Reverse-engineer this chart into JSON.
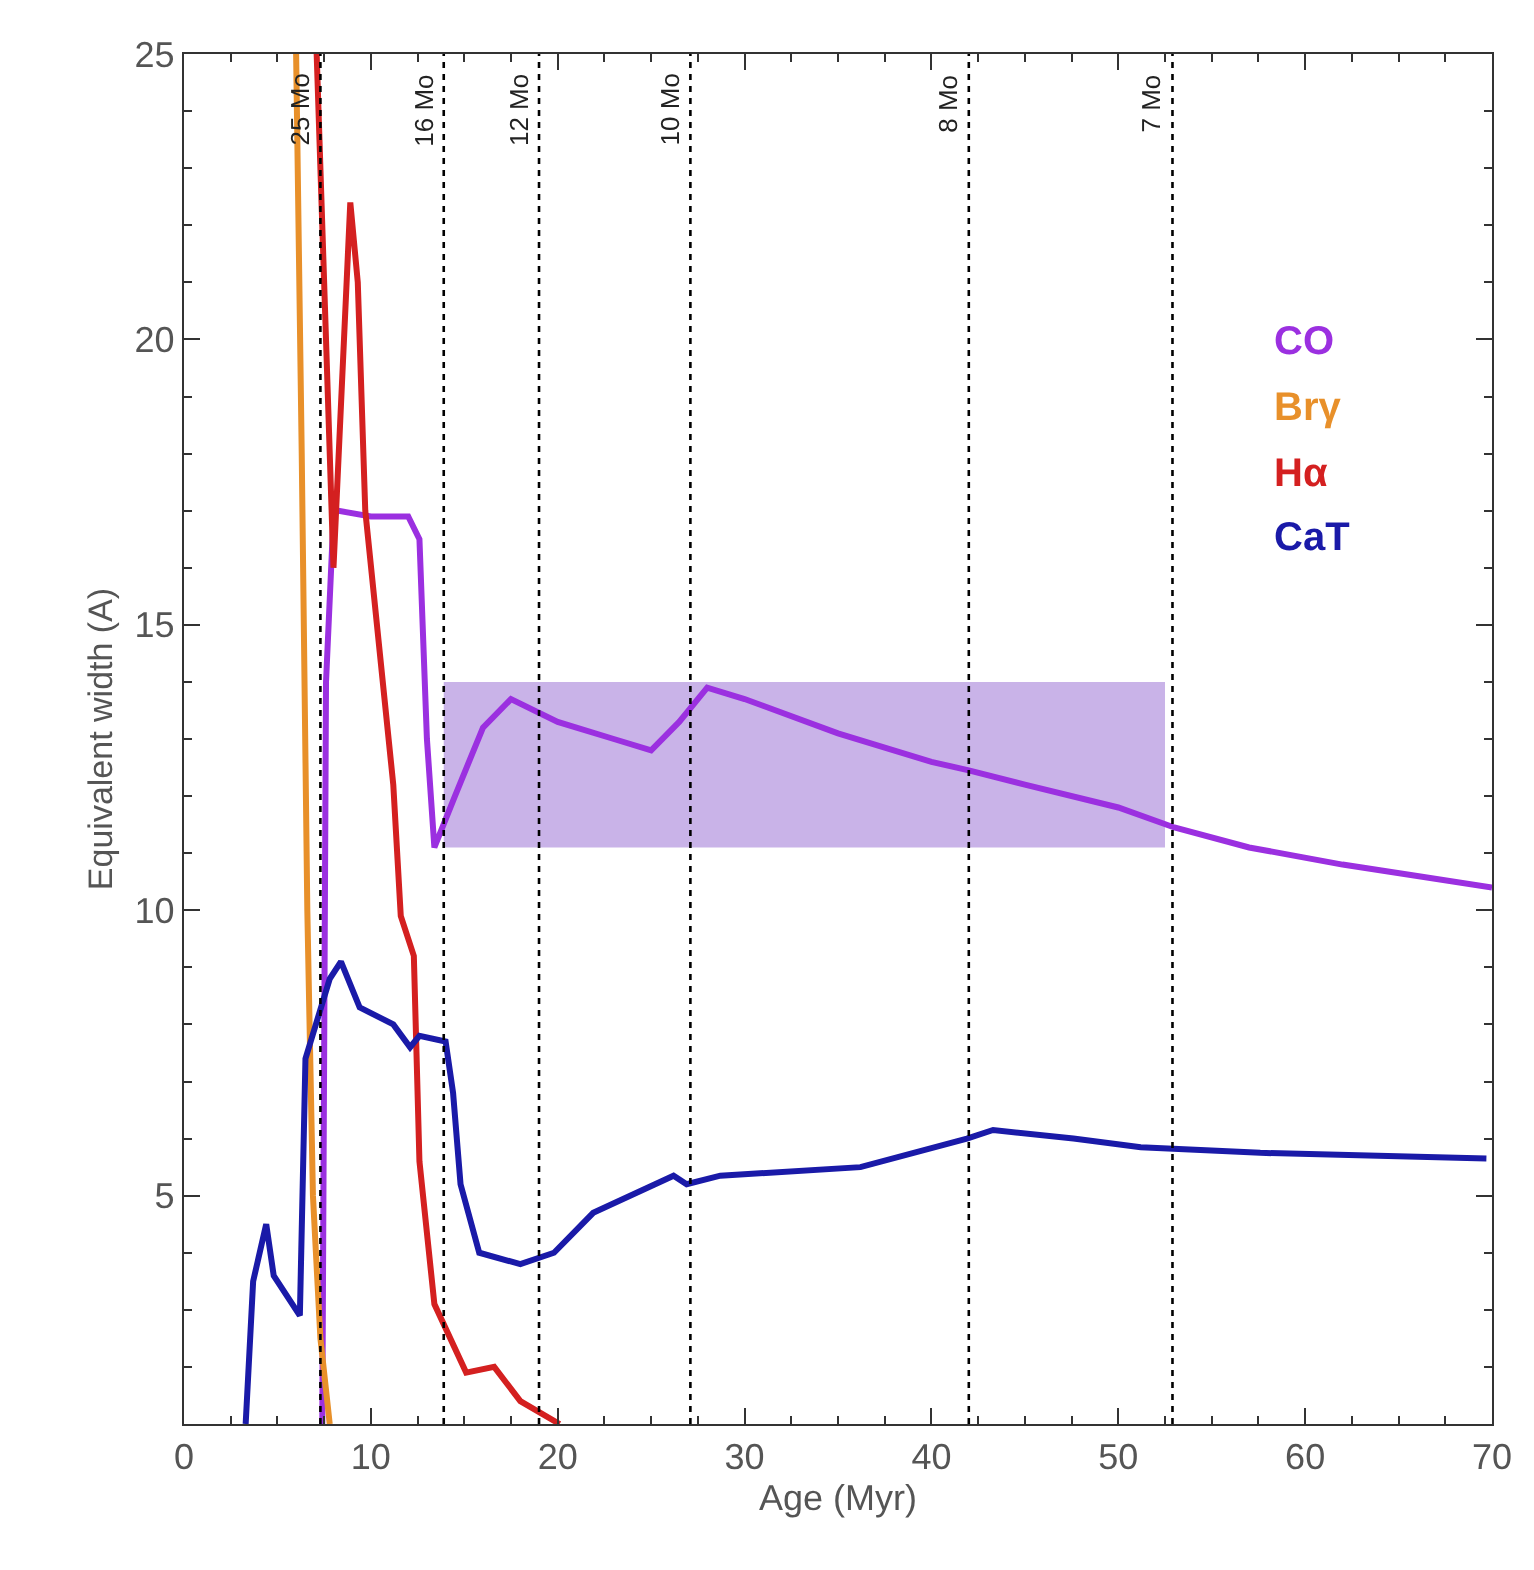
{
  "chart_data": {
    "type": "line",
    "xlabel": "Age (Myr)",
    "ylabel": "Equivalent width (A)",
    "xlim": [
      0,
      70
    ],
    "ylim": [
      1,
      25
    ],
    "xticks": [
      0,
      10,
      20,
      30,
      40,
      50,
      60,
      70
    ],
    "yticks": [
      5,
      10,
      15,
      20,
      25
    ],
    "series": [
      {
        "type": "line",
        "color": "#c9b3e8",
        "x": [
          13.9,
          52.5
        ],
        "values": [
          null,
          null
        ],
        "lower": [
          11.1,
          11.1
        ],
        "upper": [
          14.0,
          14.0
        ]
      },
      {
        "name": "CO",
        "color": "#9b30e0",
        "x": [
          7.4,
          7.6,
          8.0,
          8.2,
          10.0,
          12.0,
          12.6,
          13.0,
          13.4,
          14.5,
          16.0,
          17.5,
          20.0,
          23.0,
          25.0,
          26.5,
          28.0,
          30.0,
          35.0,
          40.0,
          42.0,
          45.0,
          50.0,
          53.0,
          57.0,
          62.0,
          66.0,
          70.0
        ],
        "values": [
          1.0,
          14.0,
          16.9,
          17.0,
          16.9,
          16.9,
          16.5,
          13.0,
          11.1,
          12.0,
          13.2,
          13.7,
          13.3,
          13.0,
          12.8,
          13.3,
          13.9,
          13.7,
          13.1,
          12.6,
          12.45,
          12.2,
          11.8,
          11.45,
          11.1,
          10.8,
          10.6,
          10.4
        ]
      },
      {
        "name": "Brγ",
        "color": "#e8902a",
        "x": [
          6.0,
          6.3,
          6.6,
          6.9,
          7.3,
          7.8
        ],
        "values": [
          25.0,
          18.0,
          10.0,
          5.0,
          2.5,
          1.0
        ]
      },
      {
        "name": "Hα",
        "color": "#d42020",
        "x": [
          7.1,
          8.0,
          8.9,
          9.3,
          9.7,
          11.2,
          11.6,
          12.3,
          12.6,
          13.4,
          15.1,
          16.6,
          18.0,
          20.1
        ],
        "values": [
          25.0,
          16.0,
          22.4,
          21.0,
          17.0,
          12.2,
          9.9,
          9.2,
          5.6,
          3.1,
          1.9,
          2.0,
          1.4,
          1.0
        ]
      },
      {
        "name": "CaT",
        "color": "#1a1aa8",
        "x": [
          3.3,
          3.7,
          4.4,
          4.8,
          6.2,
          6.5,
          7.8,
          8.4,
          9.4,
          11.2,
          12.1,
          12.6,
          14.0,
          14.4,
          14.8,
          15.8,
          18.0,
          19.8,
          21.9,
          26.2,
          26.9,
          28.7,
          36.2,
          41.9,
          43.3,
          47.6,
          51.2,
          57.6,
          69.7
        ],
        "values": [
          1.0,
          3.5,
          4.5,
          3.6,
          2.9,
          7.4,
          8.8,
          9.1,
          8.3,
          8.0,
          7.6,
          7.8,
          7.7,
          6.8,
          5.2,
          4.0,
          3.8,
          4.0,
          4.7,
          5.35,
          5.2,
          5.35,
          5.5,
          6.0,
          6.15,
          6.0,
          5.85,
          5.75,
          5.65
        ]
      }
    ],
    "ref_lines": [
      {
        "axis": "x",
        "value": 7.3,
        "label": "25 Mo",
        "line_style": "dotted"
      },
      {
        "axis": "x",
        "value": 13.9,
        "label": "16 Mo",
        "line_style": "dotted"
      },
      {
        "axis": "x",
        "value": 19.0,
        "label": "12 Mo",
        "line_style": "dotted"
      },
      {
        "axis": "x",
        "value": 27.1,
        "label": "10 Mo",
        "line_style": "dotted"
      },
      {
        "axis": "x",
        "value": 42.0,
        "label": "8 Mo",
        "line_style": "dotted"
      },
      {
        "axis": "x",
        "value": 52.9,
        "label": "7 Mo",
        "line_style": "dotted"
      }
    ]
  }
}
